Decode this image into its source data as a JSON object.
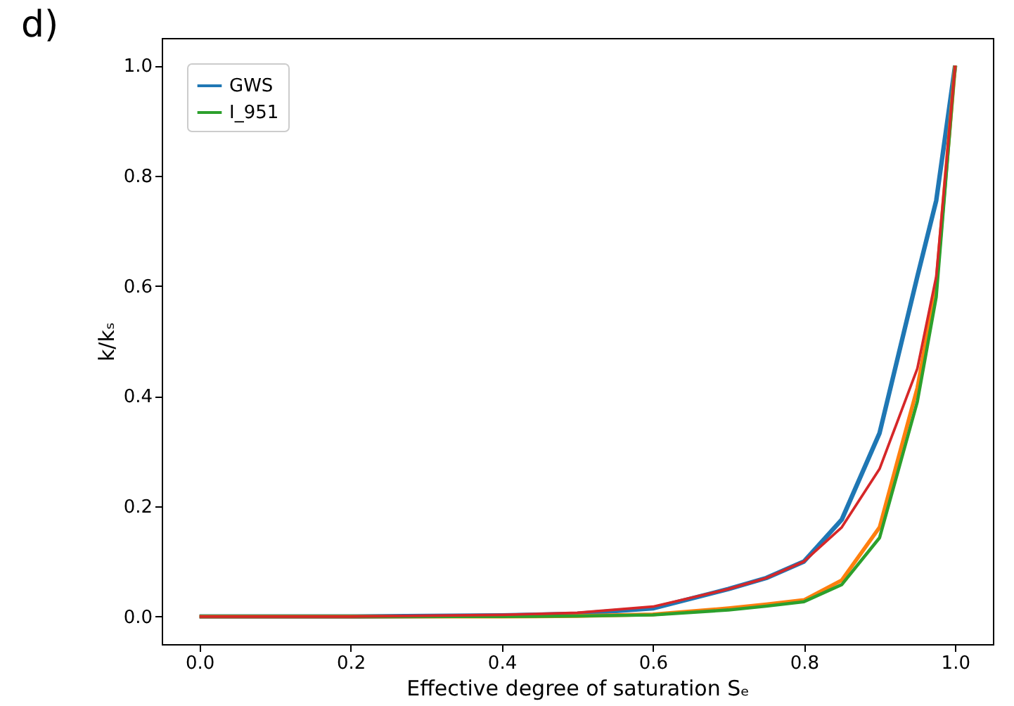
{
  "chart_data": {
    "type": "line",
    "title": "d)",
    "xlabel": "Effective degree of saturation Sₑ",
    "ylabel": "k/kₛ",
    "x": [
      0,
      0.2,
      0.4,
      0.5,
      0.6,
      0.7,
      0.75,
      0.8,
      0.85,
      0.9,
      0.95,
      0.975,
      1.0
    ],
    "series": [
      {
        "name": "GWS",
        "color": "#1f77b4",
        "values": [
          0,
          0,
          0.002,
          0.005,
          0.015,
          0.05,
          0.07,
          0.1,
          0.176,
          0.333,
          0.617,
          0.755,
          1.0
        ]
      },
      {
        "color": "#ff7f0e",
        "values": [
          0,
          0,
          0,
          0.001,
          0.004,
          0.015,
          0.022,
          0.03,
          0.066,
          0.162,
          0.415,
          0.6,
          1.0
        ]
      },
      {
        "name": "I_951",
        "color": "#2ca02c",
        "values": [
          0,
          0,
          0,
          0.001,
          0.003,
          0.012,
          0.019,
          0.027,
          0.058,
          0.143,
          0.39,
          0.58,
          1.0
        ]
      },
      {
        "color": "#d62728",
        "values": [
          0,
          0,
          0.003,
          0.007,
          0.018,
          0.05,
          0.07,
          0.1,
          0.162,
          0.268,
          0.45,
          0.617,
          1.0
        ]
      }
    ],
    "xlim": [
      -0.05,
      1.05
    ],
    "ylim": [
      -0.05,
      1.05
    ],
    "xticks": [
      {
        "value": 0,
        "label": "0.0"
      },
      0.2,
      0.4,
      0.6,
      0.8,
      {
        "value": 1,
        "label": "1.0"
      }
    ],
    "yticks": [
      {
        "value": 0,
        "label": "0.0"
      },
      0.2,
      0.4,
      0.6,
      0.8,
      {
        "value": 1,
        "label": "1.0"
      }
    ],
    "grid": false,
    "legend": "top left",
    "marker": "none",
    "line_style": "solid"
  }
}
